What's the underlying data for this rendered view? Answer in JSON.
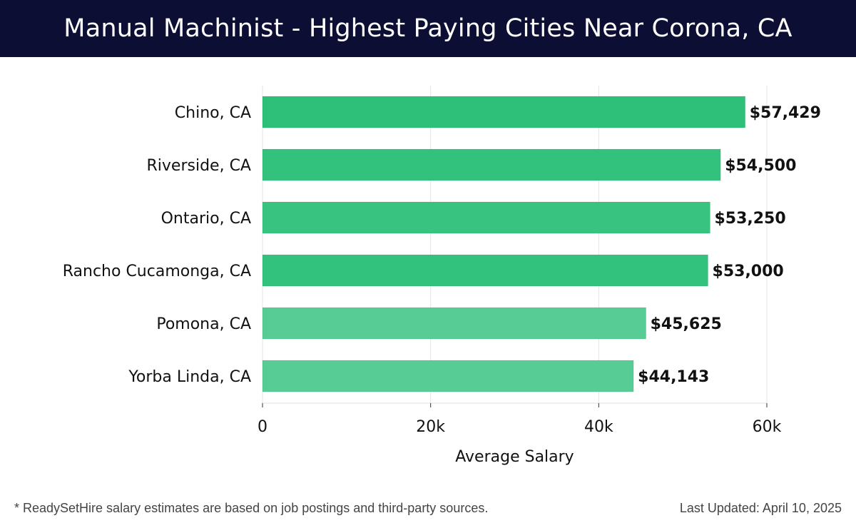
{
  "header": {
    "title": "Manual Machinist - Highest Paying Cities Near Corona, CA"
  },
  "chart_data": {
    "type": "bar",
    "orientation": "horizontal",
    "title": "Manual Machinist - Highest Paying Cities Near Corona, CA",
    "xlabel": "Average Salary",
    "ylabel": "",
    "xlim": [
      0,
      60000
    ],
    "x_ticks": [
      0,
      20000,
      40000,
      60000
    ],
    "x_tick_labels": [
      "0",
      "20k",
      "40k",
      "60k"
    ],
    "grid": true,
    "categories": [
      "Chino, CA",
      "Riverside, CA",
      "Ontario, CA",
      "Rancho Cucamonga, CA",
      "Pomona, CA",
      "Yorba Linda, CA"
    ],
    "values": [
      57429,
      54500,
      53250,
      53000,
      45625,
      44143
    ],
    "value_labels": [
      "$57,429",
      "$54,500",
      "$53,250",
      "$53,000",
      "$45,625",
      "$44,143"
    ],
    "bar_colors": [
      "#2ebf78",
      "#33c27d",
      "#38c480",
      "#33c27d",
      "#57cc94",
      "#57cc94"
    ]
  },
  "footer": {
    "note": "* ReadySetHire salary estimates are based on job postings and third-party sources.",
    "updated": "Last Updated: April 10, 2025"
  }
}
